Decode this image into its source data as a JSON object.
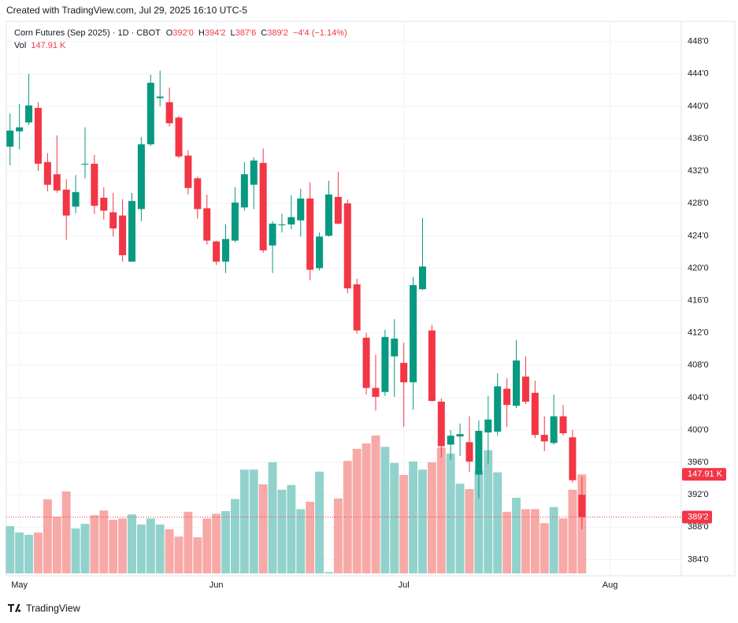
{
  "header": "Created with TradingView.com, Jul 29, 2025 16:10 UTC-5",
  "footer": "TradingView",
  "chart_data": {
    "type": "candlestick",
    "legend": {
      "symbol": "Corn Futures (Sep 2025) · 1D · CBOT",
      "o": "O",
      "open": "392'0",
      "h": "H",
      "high": "394'2",
      "l": "L",
      "low": "387'6",
      "c": "C",
      "close": "389'2",
      "change": "−4'4 (−1.14%)",
      "vol": "Vol",
      "volume": "147.91 K"
    },
    "open": [
      435.0,
      436.9,
      438.0,
      439.8,
      433.1,
      431.6,
      429.7,
      427.6,
      432.8,
      432.9,
      428.7,
      426.9,
      426.5,
      420.8,
      427.3,
      435.3,
      441.0,
      440.5,
      438.6,
      433.9,
      431.1,
      427.4,
      423.3,
      420.8,
      423.4,
      427.5,
      430.3,
      433.0,
      422.8,
      425.3,
      425.4,
      425.9,
      428.6,
      420.0,
      424.0,
      428.8,
      428.0,
      418.0,
      411.4,
      405.2,
      404.7,
      409.1,
      408.3,
      405.9,
      417.4,
      412.3,
      403.5,
      398.2,
      399.2,
      398.5,
      394.5,
      399.7,
      399.8,
      405.1,
      403.0,
      406.6,
      404.6,
      399.4,
      398.4,
      401.7,
      399.1,
      392.0
    ],
    "high": [
      439.1,
      440.3,
      444.0,
      440.5,
      434.2,
      436.4,
      431.0,
      431.5,
      437.4,
      434.0,
      430.0,
      429.3,
      428.5,
      429.3,
      436.2,
      443.9,
      444.4,
      442.3,
      438.8,
      434.6,
      431.3,
      429.1,
      423.4,
      425.4,
      430.0,
      433.1,
      433.7,
      434.8,
      425.8,
      426.7,
      429.0,
      429.8,
      430.6,
      424.4,
      430.8,
      431.9,
      428.5,
      418.7,
      412.0,
      409.3,
      412.4,
      413.7,
      410.8,
      418.9,
      426.2,
      413.0,
      403.9,
      400.0,
      400.8,
      401.7,
      401.2,
      404.2,
      407.0,
      406.4,
      411.1,
      409.1,
      406.1,
      401.7,
      404.4,
      403.1,
      400.0,
      394.25
    ],
    "low": [
      432.7,
      434.7,
      437.7,
      432.0,
      429.5,
      429.3,
      423.5,
      426.8,
      431.1,
      426.7,
      426.0,
      423.9,
      420.8,
      420.8,
      425.8,
      435.1,
      440.0,
      437.5,
      433.6,
      429.1,
      426.1,
      422.9,
      420.4,
      419.4,
      423.2,
      427.1,
      427.3,
      421.9,
      419.4,
      424.4,
      424.8,
      423.9,
      418.5,
      419.7,
      423.9,
      425.4,
      416.9,
      411.9,
      404.4,
      402.4,
      404.2,
      404.1,
      400.4,
      402.5,
      417.3,
      403.5,
      396.6,
      396.3,
      396.8,
      394.8,
      391.5,
      395.8,
      399.3,
      400.4,
      402.7,
      403.2,
      399.0,
      397.4,
      398.2,
      399.3,
      393.5,
      387.75
    ],
    "close": [
      437.0,
      437.4,
      440.1,
      432.9,
      430.3,
      429.6,
      426.5,
      429.4,
      432.9,
      427.7,
      427.1,
      424.9,
      421.6,
      428.3,
      435.3,
      442.9,
      441.2,
      437.9,
      433.8,
      429.9,
      427.3,
      423.4,
      420.8,
      423.6,
      428.1,
      431.6,
      433.3,
      422.2,
      425.5,
      425.4,
      426.3,
      428.6,
      419.8,
      423.9,
      429.1,
      425.5,
      417.5,
      412.3,
      405.2,
      404.1,
      411.5,
      411.3,
      405.9,
      417.9,
      420.2,
      403.6,
      398.0,
      399.3,
      399.5,
      396.1,
      399.9,
      401.3,
      405.4,
      403.1,
      408.6,
      403.5,
      399.4,
      398.6,
      401.7,
      399.6,
      393.8,
      389.25
    ],
    "volume": [
      70.6,
      61,
      57.6,
      61,
      110.6,
      84.7,
      122.4,
      67,
      74,
      87,
      94,
      80,
      82,
      88,
      73,
      82,
      73,
      66,
      55,
      92,
      54,
      82,
      89,
      93,
      111,
      155,
      155,
      133,
      166,
      125,
      132,
      96,
      107,
      152,
      2,
      112,
      168,
      186,
      194,
      206,
      189,
      165,
      147,
      167,
      155,
      166,
      188,
      179,
      134,
      126,
      153,
      184,
      151,
      92,
      113,
      96,
      96,
      75,
      99,
      82,
      125,
      147.91
    ],
    "volume_label": "147.91 K",
    "last_price_label": "389'2",
    "up_color": "#089981",
    "down_color": "#f23645",
    "volume_up_color": "#92d2cc",
    "volume_down_color": "#f7a9a7",
    "ylim": [
      382.0,
      450.5
    ],
    "yticks": [
      {
        "value": 384,
        "label": "384'0"
      },
      {
        "value": 388,
        "label": "388'0"
      },
      {
        "value": 392,
        "label": "392'0"
      },
      {
        "value": 396,
        "label": "396'0"
      },
      {
        "value": 400,
        "label": "400'0"
      },
      {
        "value": 404,
        "label": "404'0"
      },
      {
        "value": 408,
        "label": "408'0"
      },
      {
        "value": 412,
        "label": "412'0"
      },
      {
        "value": 416,
        "label": "416'0"
      },
      {
        "value": 420,
        "label": "420'0"
      },
      {
        "value": 424,
        "label": "424'0"
      },
      {
        "value": 428,
        "label": "428'0"
      },
      {
        "value": 432,
        "label": "432'0"
      },
      {
        "value": 436,
        "label": "436'0"
      },
      {
        "value": 440,
        "label": "440'0"
      },
      {
        "value": 444,
        "label": "444'0"
      },
      {
        "value": 448,
        "label": "448'0"
      }
    ],
    "xlim": [
      -0.4,
      71.6
    ],
    "xticks": [
      {
        "value": 1,
        "label": "May"
      },
      {
        "value": 22,
        "label": "Jun"
      },
      {
        "value": 42,
        "label": "Jul"
      },
      {
        "value": 64,
        "label": "Aug"
      }
    ],
    "volume_lim": [
      0,
      300
    ],
    "grid": true
  }
}
